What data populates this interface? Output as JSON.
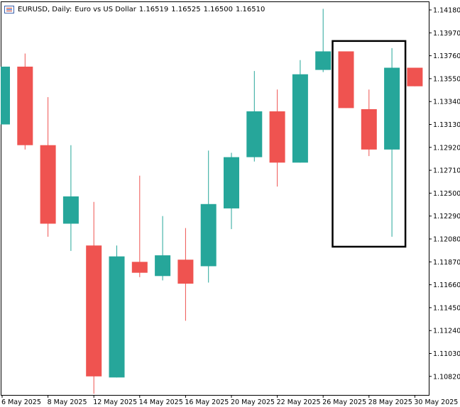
{
  "header": {
    "symbol": "EURUSD, Daily:",
    "description": "Euro vs US Dollar",
    "open": "1.16519",
    "high": "1.16525",
    "low": "1.16500",
    "close": "1.16510",
    "icon": "chart-window-icon"
  },
  "colors": {
    "bull": "#26a69a",
    "bear": "#ef5350",
    "axis": "#000000",
    "highlight_box": "#000000"
  },
  "chart_data": {
    "type": "candlestick",
    "y_ticks": [
      "1.14180",
      "1.13970",
      "1.13760",
      "1.13550",
      "1.13340",
      "1.13130",
      "1.12920",
      "1.12710",
      "1.12500",
      "1.12290",
      "1.12080",
      "1.11870",
      "1.11660",
      "1.11450",
      "1.11240",
      "1.11030",
      "1.10820"
    ],
    "x_ticks": [
      "6 May 2025",
      "8 May 2025",
      "12 May 2025",
      "14 May 2025",
      "16 May 2025",
      "20 May 2025",
      "22 May 2025",
      "26 May 2025",
      "28 May 2025",
      "30 May 2025"
    ],
    "ylim": [
      1.1063,
      1.1436
    ],
    "candles": [
      {
        "o": 1.1313,
        "h": 1.1366,
        "l": 1.1313,
        "c": 1.1366
      },
      {
        "o": 1.1366,
        "h": 1.1378,
        "l": 1.129,
        "c": 1.1294
      },
      {
        "o": 1.1294,
        "h": 1.1338,
        "l": 1.121,
        "c": 1.1222
      },
      {
        "o": 1.1222,
        "h": 1.1294,
        "l": 1.1197,
        "c": 1.1247
      },
      {
        "o": 1.1202,
        "h": 1.1242,
        "l": 1.1066,
        "c": 1.1082
      },
      {
        "o": 1.1081,
        "h": 1.1202,
        "l": 1.1081,
        "c": 1.1192
      },
      {
        "o": 1.1187,
        "h": 1.1266,
        "l": 1.1173,
        "c": 1.1177
      },
      {
        "o": 1.1174,
        "h": 1.1229,
        "l": 1.117,
        "c": 1.1193
      },
      {
        "o": 1.1189,
        "h": 1.1218,
        "l": 1.1133,
        "c": 1.1167
      },
      {
        "o": 1.1183,
        "h": 1.1289,
        "l": 1.1168,
        "c": 1.124
      },
      {
        "o": 1.1236,
        "h": 1.1287,
        "l": 1.1217,
        "c": 1.1283
      },
      {
        "o": 1.1283,
        "h": 1.1362,
        "l": 1.1279,
        "c": 1.1325
      },
      {
        "o": 1.1325,
        "h": 1.1345,
        "l": 1.1256,
        "c": 1.1278
      },
      {
        "o": 1.1278,
        "h": 1.1372,
        "l": 1.1278,
        "c": 1.1359
      },
      {
        "o": 1.1363,
        "h": 1.1419,
        "l": 1.1361,
        "c": 1.138
      },
      {
        "o": 1.138,
        "h": 1.138,
        "l": 1.1328,
        "c": 1.1328
      },
      {
        "o": 1.1327,
        "h": 1.1345,
        "l": 1.1284,
        "c": 1.129
      },
      {
        "o": 1.129,
        "h": 1.1383,
        "l": 1.121,
        "c": 1.1365
      },
      {
        "o": 1.1365,
        "h": 1.1365,
        "l": 1.1348,
        "c": 1.1348
      }
    ],
    "highlight_candles": [
      15,
      17
    ]
  }
}
